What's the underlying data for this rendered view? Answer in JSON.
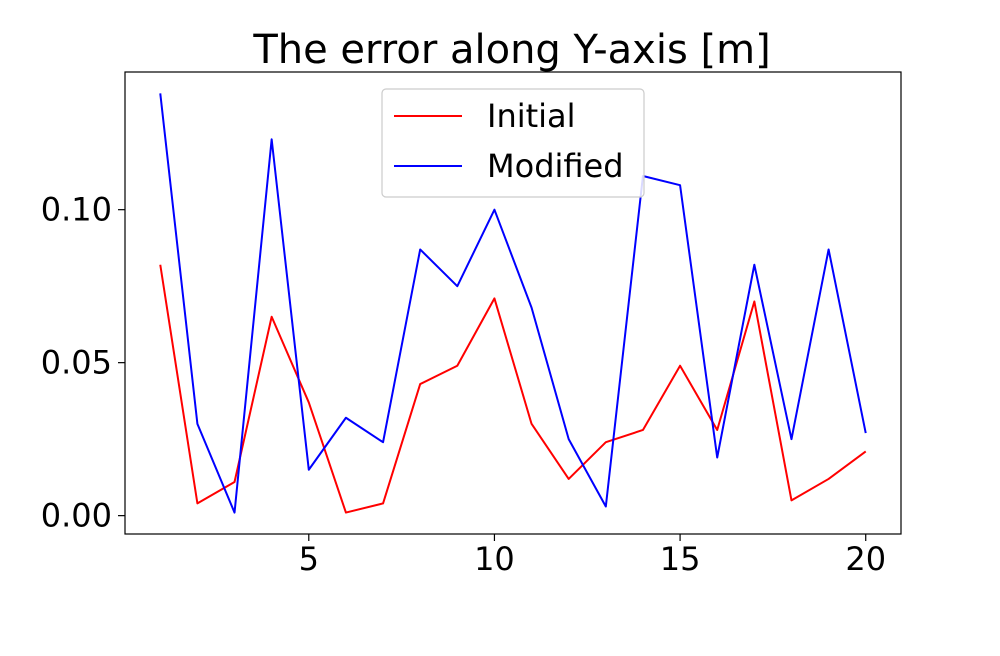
{
  "chart_data": {
    "type": "line",
    "title": "The error along Y-axis [m]",
    "xlabel": "",
    "ylabel": "",
    "x": [
      1,
      2,
      3,
      4,
      5,
      6,
      7,
      8,
      9,
      10,
      11,
      12,
      13,
      14,
      15,
      16,
      17,
      18,
      19,
      20
    ],
    "xlim": [
      0.05,
      20.95
    ],
    "ylim": [
      -0.006,
      0.145
    ],
    "xticks": [
      5,
      10,
      15,
      20
    ],
    "xtick_labels": [
      "5",
      "10",
      "15",
      "20"
    ],
    "yticks": [
      0.0,
      0.05,
      0.1
    ],
    "ytick_labels": [
      "0.00",
      "0.05",
      "0.10"
    ],
    "grid": false,
    "legend": {
      "position": "top-center"
    },
    "series": [
      {
        "name": "Initial",
        "color": "#ff0000",
        "values": [
          0.082,
          0.004,
          0.011,
          0.065,
          0.037,
          0.001,
          0.004,
          0.043,
          0.049,
          0.071,
          0.03,
          0.012,
          0.024,
          0.028,
          0.049,
          0.028,
          0.07,
          0.005,
          0.012,
          0.021
        ]
      },
      {
        "name": "Modified",
        "color": "#0000ff",
        "values": [
          0.138,
          0.03,
          0.001,
          0.123,
          0.015,
          0.032,
          0.024,
          0.087,
          0.075,
          0.1,
          0.068,
          0.025,
          0.003,
          0.111,
          0.108,
          0.019,
          0.082,
          0.025,
          0.087,
          0.027
        ]
      }
    ]
  }
}
